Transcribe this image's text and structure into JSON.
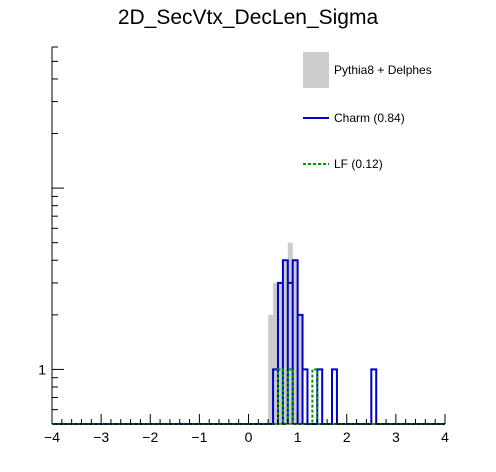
{
  "chart_data": {
    "type": "histogram",
    "title": "2D_SecVtx_DecLen_Sigma",
    "xlabel": "",
    "ylabel": "",
    "xlim": [
      -4,
      4
    ],
    "y_scale": "log",
    "ylim": [
      0.5,
      60
    ],
    "y_tick_labels": [
      {
        "value": 1,
        "label": "1"
      }
    ],
    "x_tick_labels": [
      {
        "value": -4,
        "label": "−4"
      },
      {
        "value": -3,
        "label": "−3"
      },
      {
        "value": -2,
        "label": "−2"
      },
      {
        "value": -1,
        "label": "−1"
      },
      {
        "value": 0,
        "label": "0"
      },
      {
        "value": 1,
        "label": "1"
      },
      {
        "value": 2,
        "label": "2"
      },
      {
        "value": 3,
        "label": "3"
      },
      {
        "value": 4,
        "label": "4"
      }
    ],
    "grid": false,
    "legend_position": "top-right",
    "series": [
      {
        "name": "Pythia8 + Delphes",
        "style": "filled",
        "color": "#cccccc",
        "bins": [
          {
            "x0": 0.4,
            "x1": 0.5,
            "value": 2.0
          },
          {
            "x0": 0.5,
            "x1": 0.6,
            "value": 3.0
          },
          {
            "x0": 0.6,
            "x1": 0.7,
            "value": 3.0
          },
          {
            "x0": 0.7,
            "x1": 0.8,
            "value": 4.0
          },
          {
            "x0": 0.8,
            "x1": 0.9,
            "value": 5.0
          },
          {
            "x0": 0.9,
            "x1": 1.0,
            "value": 4.0
          },
          {
            "x0": 1.0,
            "x1": 1.1,
            "value": 2.0
          }
        ]
      },
      {
        "name": "Charm (0.84)",
        "style": "line",
        "color": "#0000cc",
        "bins": [
          {
            "x0": 0.5,
            "x1": 0.6,
            "value": 1.0
          },
          {
            "x0": 0.6,
            "x1": 0.7,
            "value": 3.0
          },
          {
            "x0": 0.7,
            "x1": 0.8,
            "value": 4.0
          },
          {
            "x0": 0.8,
            "x1": 0.9,
            "value": 3.0
          },
          {
            "x0": 0.9,
            "x1": 1.0,
            "value": 4.0
          },
          {
            "x0": 1.0,
            "x1": 1.1,
            "value": 2.0
          },
          {
            "x0": 1.1,
            "x1": 1.2,
            "value": 1.0
          },
          {
            "x0": 1.4,
            "x1": 1.5,
            "value": 1.0
          },
          {
            "x0": 1.7,
            "x1": 1.8,
            "value": 1.0
          },
          {
            "x0": 2.5,
            "x1": 2.6,
            "value": 1.0
          }
        ]
      },
      {
        "name": "LF (0.12)",
        "style": "dotted-line",
        "color": "#009900",
        "bins": [
          {
            "x0": 0.6,
            "x1": 0.7,
            "value": 1.0
          },
          {
            "x0": 0.8,
            "x1": 0.9,
            "value": 1.0
          },
          {
            "x0": 1.3,
            "x1": 1.4,
            "value": 1.0
          }
        ]
      }
    ]
  }
}
